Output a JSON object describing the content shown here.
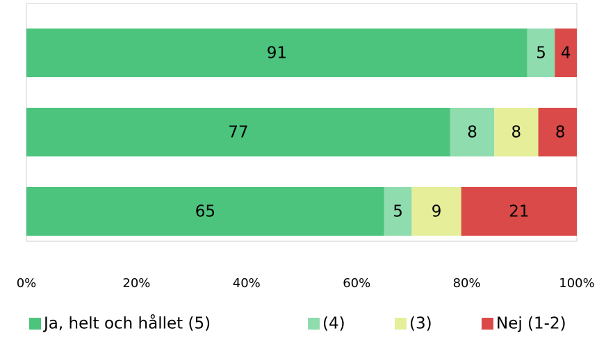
{
  "chart_data": {
    "type": "stacked_bar_horizontal",
    "categories": [
      null,
      null,
      null
    ],
    "series": [
      {
        "name": "Ja, helt och hållet (5)",
        "color": "#4cc47e",
        "values": [
          91,
          77,
          65
        ]
      },
      {
        "name": "(4)",
        "color": "#8fdcae",
        "values": [
          5,
          8,
          5
        ]
      },
      {
        "name": "(3)",
        "color": "#e6ee9a",
        "values": [
          null,
          8,
          9
        ]
      },
      {
        "name": "Nej (1-2)",
        "color": "#d94a48",
        "values": [
          4,
          8,
          21
        ]
      }
    ],
    "xlim": [
      0,
      100
    ],
    "xticks": [
      {
        "value": 0,
        "label": "0%"
      },
      {
        "value": 20,
        "label": "20%"
      },
      {
        "value": 40,
        "label": "40%"
      },
      {
        "value": 60,
        "label": "60%"
      },
      {
        "value": 80,
        "label": "80%"
      },
      {
        "value": 100,
        "label": "100%"
      }
    ],
    "legend": "bottom"
  }
}
